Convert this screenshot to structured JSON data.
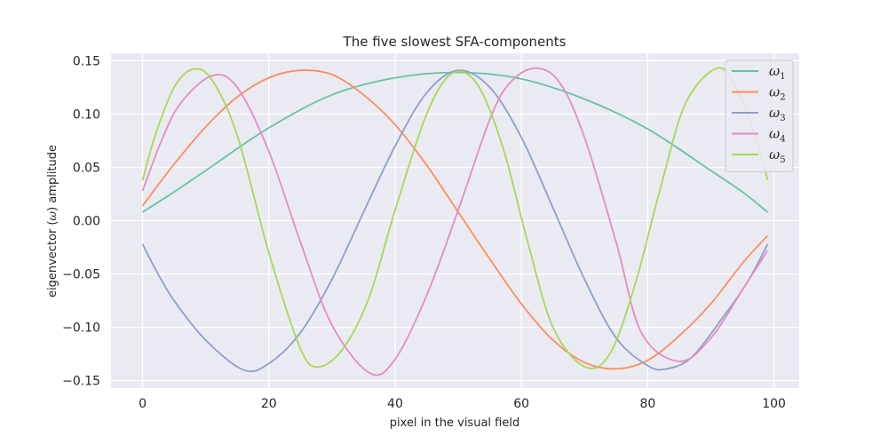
{
  "chart_data": {
    "type": "line",
    "title": "The five slowest SFA-components",
    "xlabel": "pixel in the visual field",
    "ylabel_parts": [
      "eigenvector (",
      "ω",
      ") amplitude"
    ],
    "xlim": [
      -5,
      104
    ],
    "ylim": [
      -0.157,
      0.157
    ],
    "xticks": [
      0,
      20,
      40,
      60,
      80,
      100
    ],
    "xtick_labels": [
      "0",
      "20",
      "40",
      "60",
      "80",
      "100"
    ],
    "yticks": [
      -0.15,
      -0.1,
      -0.05,
      0.0,
      0.05,
      0.1,
      0.15
    ],
    "ytick_labels": [
      "−0.15",
      "−0.10",
      "−0.05",
      "0.00",
      "0.05",
      "0.10",
      "0.15"
    ],
    "grid": true,
    "legend_position": "top-right",
    "series": [
      {
        "name": "ω",
        "subscript": "1",
        "color": "#66c2a5",
        "x": [
          0,
          5,
          10,
          20,
          30,
          40,
          50,
          60,
          70,
          80,
          90,
          95,
          99
        ],
        "y": [
          0.008,
          0.027,
          0.047,
          0.087,
          0.118,
          0.134,
          0.139,
          0.133,
          0.114,
          0.086,
          0.047,
          0.027,
          0.008
        ]
      },
      {
        "name": "ω",
        "subscript": "2",
        "color": "#fc8d62",
        "x": [
          0,
          5,
          10,
          15,
          20,
          25,
          30,
          35,
          40,
          45,
          50,
          55,
          60,
          65,
          70,
          75,
          80,
          85,
          90,
          95,
          99
        ],
        "y": [
          0.014,
          0.053,
          0.088,
          0.116,
          0.134,
          0.141,
          0.137,
          0.118,
          0.09,
          0.052,
          0.008,
          -0.036,
          -0.078,
          -0.112,
          -0.133,
          -0.139,
          -0.131,
          -0.108,
          -0.078,
          -0.04,
          -0.014
        ]
      },
      {
        "name": "ω",
        "subscript": "3",
        "color": "#8da0cb",
        "x": [
          0,
          2,
          5,
          10,
          16,
          20,
          25,
          30,
          35,
          40,
          45,
          50,
          55,
          60,
          65,
          70,
          75,
          80,
          83,
          87,
          92,
          95,
          97,
          99
        ],
        "y": [
          -0.022,
          -0.045,
          -0.075,
          -0.112,
          -0.14,
          -0.134,
          -0.105,
          -0.055,
          0.008,
          0.07,
          0.12,
          0.141,
          0.125,
          0.078,
          0.012,
          -0.055,
          -0.11,
          -0.136,
          -0.139,
          -0.128,
          -0.09,
          -0.065,
          -0.045,
          -0.022
        ]
      },
      {
        "name": "ω",
        "subscript": "4",
        "color": "#e78ac3",
        "x": [
          0,
          3,
          6,
          11,
          15,
          20,
          25,
          30,
          36,
          40,
          45,
          50,
          55,
          58,
          62,
          66,
          70,
          75,
          79,
          85,
          90,
          95,
          99
        ],
        "y": [
          0.028,
          0.075,
          0.11,
          0.136,
          0.125,
          0.065,
          -0.02,
          -0.098,
          -0.143,
          -0.13,
          -0.07,
          0.01,
          0.095,
          0.128,
          0.143,
          0.13,
          0.078,
          -0.02,
          -0.105,
          -0.132,
          -0.11,
          -0.065,
          -0.028
        ]
      },
      {
        "name": "ω",
        "subscript": "5",
        "color": "#a6d854",
        "x": [
          0,
          2,
          5,
          8,
          11,
          15,
          20,
          25,
          28,
          32,
          36,
          40,
          45,
          49,
          53,
          57,
          61,
          65,
          70,
          74,
          78,
          82,
          86,
          91,
          94,
          97,
          99
        ],
        "y": [
          0.038,
          0.08,
          0.125,
          0.142,
          0.132,
          0.08,
          -0.03,
          -0.12,
          -0.137,
          -0.118,
          -0.07,
          0.01,
          0.1,
          0.138,
          0.128,
          0.07,
          -0.02,
          -0.1,
          -0.137,
          -0.125,
          -0.06,
          0.03,
          0.11,
          0.143,
          0.125,
          0.08,
          0.038
        ]
      }
    ]
  }
}
